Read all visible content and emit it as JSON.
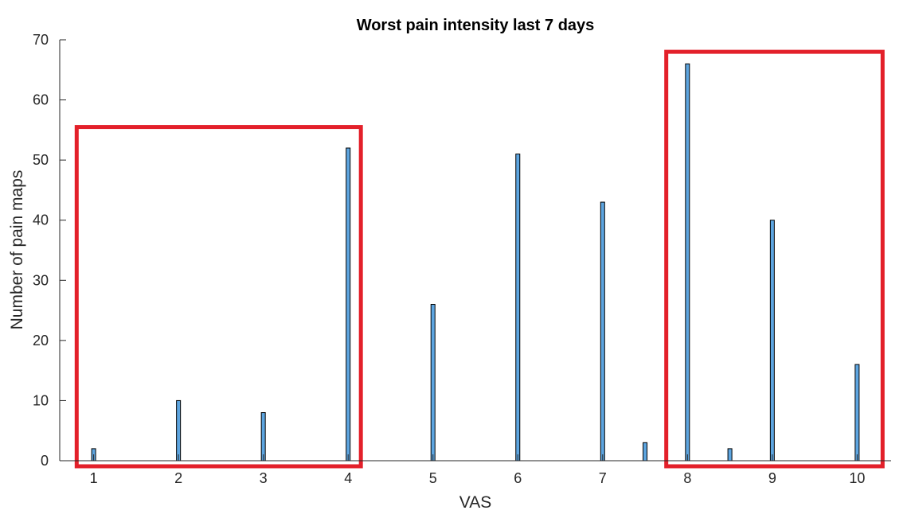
{
  "chart_data": {
    "type": "bar",
    "title": "Worst pain intensity last 7 days",
    "xlabel": "VAS",
    "ylabel": "Number of pain maps",
    "x": [
      1,
      2,
      3,
      4,
      5,
      6,
      7,
      7.5,
      8,
      8.5,
      9,
      10
    ],
    "values": [
      2,
      10,
      8,
      52,
      26,
      51,
      43,
      3,
      66,
      2,
      40,
      16
    ],
    "xlim": [
      0.6,
      10.4
    ],
    "ylim": [
      0,
      70
    ],
    "xticks": [
      "1",
      "2",
      "3",
      "4",
      "5",
      "6",
      "7",
      "8",
      "9",
      "10"
    ],
    "yticks": [
      "0",
      "10",
      "20",
      "30",
      "40",
      "50",
      "60",
      "70"
    ],
    "grid": false,
    "bar_color": "#5DA5E0",
    "edge_color": "#000000",
    "highlight_color": "#E3202A",
    "highlight_ranges": [
      {
        "x": [
          0.8,
          4.15
        ],
        "y": [
          0,
          55.5
        ]
      },
      {
        "x": [
          7.75,
          10.3
        ],
        "y": [
          0,
          68
        ]
      }
    ]
  }
}
